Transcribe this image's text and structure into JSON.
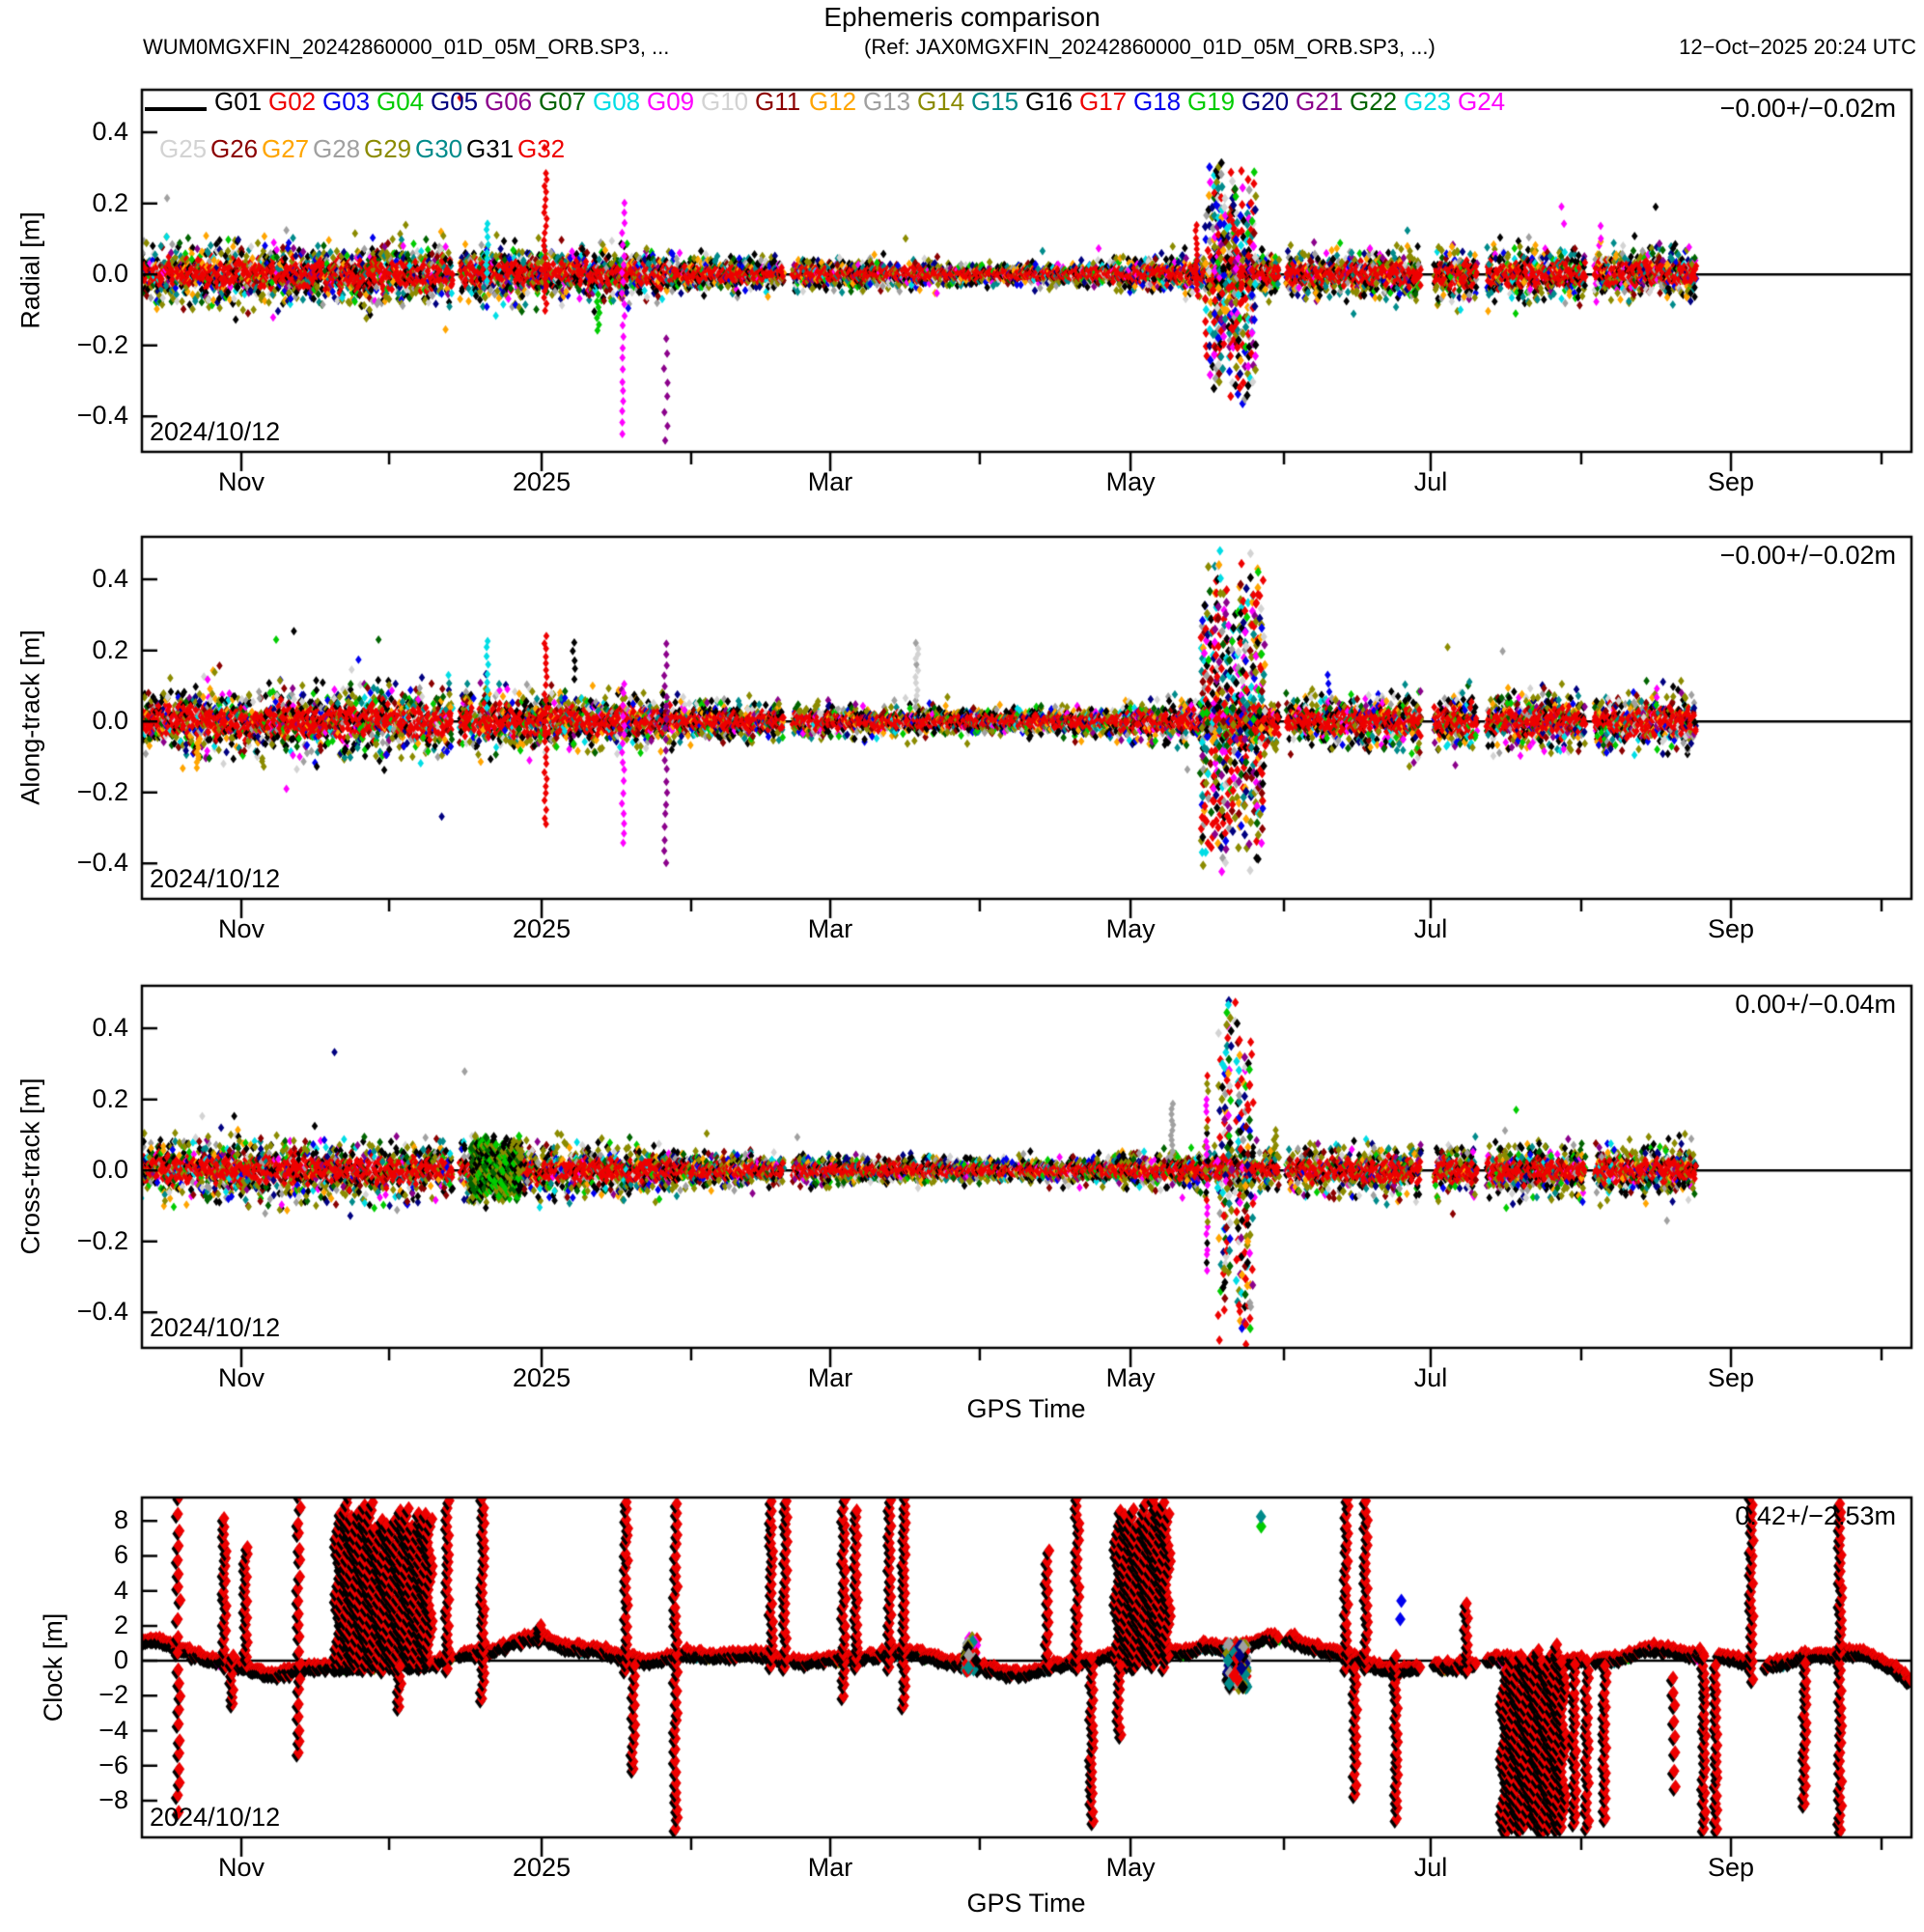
{
  "title": "Ephemeris comparison",
  "header": {
    "left_file": "WUM0MGXFIN_20242860000_01D_05M_ORB.SP3, ...",
    "ref_file": "(Ref: JAX0MGXFIN_20242860000_01D_05M_ORB.SP3, ...)",
    "timestamp": "12−Oct−2025 20:24 UTC"
  },
  "colors": {
    "black": "#000000",
    "red": "#ee0000",
    "blue": "#0000ee",
    "green": "#00cc00",
    "navy": "#000080",
    "purple": "#8b008b",
    "darkgreen": "#006400",
    "cyan": "#00dde5",
    "magenta": "#ff00ff",
    "lightgray": "#d3d3d3",
    "darkred": "#8b0000",
    "orange": "#ffa500",
    "gray": "#a0a0a0",
    "olive": "#8b8b00",
    "teal": "#008b8b"
  },
  "legend": {
    "sat_ids": [
      "G01",
      "G02",
      "G03",
      "G04",
      "G05",
      "G06",
      "G07",
      "G08",
      "G09",
      "G10",
      "G11",
      "G12",
      "G13",
      "G14",
      "G15",
      "G16",
      "G17",
      "G18",
      "G19",
      "G20",
      "G21",
      "G22",
      "G23",
      "G24",
      "G25",
      "G26",
      "G27",
      "G28",
      "G29",
      "G30",
      "G31",
      "G32"
    ],
    "palette15": [
      "black",
      "red",
      "blue",
      "green",
      "navy",
      "purple",
      "darkgreen",
      "cyan",
      "magenta",
      "lightgray",
      "darkred",
      "orange",
      "gray",
      "olive",
      "teal"
    ]
  },
  "axes": {
    "xlabel": "GPS Time",
    "x_major_ticks": [
      {
        "label": "Nov",
        "t": 0.0562
      },
      {
        "label": "2025",
        "t": 0.2259
      },
      {
        "label": "Mar",
        "t": 0.389
      },
      {
        "label": "May",
        "t": 0.5587
      },
      {
        "label": "Jul",
        "t": 0.7283
      },
      {
        "label": "Sep",
        "t": 0.898
      }
    ],
    "x_minor_ticks": [
      0.1397,
      0.3104,
      0.4735,
      0.6454,
      0.8134,
      0.9831
    ]
  },
  "burst_weights": {
    "red": 5,
    "black": 2,
    "olive": 2,
    "teal": 1.5,
    "cyan": 1.2,
    "magenta": 1.2,
    "orange": 1.2,
    "green": 1,
    "blue": 1,
    "navy": 1,
    "purple": 1,
    "darkred": 1,
    "gray": 1,
    "lightgray": 1,
    "darkgreen": 0.8
  },
  "chart_data": [
    {
      "type": "scatter",
      "name": "radial",
      "ylabel": "Radial [m]",
      "stat": "−0.00+/−0.02m",
      "date_label": "2024/10/12",
      "ylim": [
        -0.5,
        0.52
      ],
      "yticks": [
        {
          "label": "0.4",
          "v": 0.4
        },
        {
          "label": "0.2",
          "v": 0.2
        },
        {
          "label": "0.0",
          "v": 0.0
        },
        {
          "label": "−0.2",
          "v": -0.2
        },
        {
          "label": "−0.4",
          "v": -0.4
        }
      ],
      "band": {
        "end": 0.878,
        "sigma": 0.05,
        "core": 0.022,
        "fringe": {
          "olive": 3,
          "black": 3,
          "teal": 1.5,
          "darkred": 1,
          "gray": 1,
          "lightgray": 1,
          "orange": 1.2,
          "green": 0.8,
          "blue": 0.8,
          "navy": 0.8,
          "purple": 0.6,
          "magenta": 0.6,
          "cyan": 0.6,
          "darkgreen": 0.8
        }
      },
      "events": [
        {
          "kind": "dots",
          "t": 0.179,
          "y0": 0.49,
          "y1": 0.51,
          "n": 1,
          "colors": [
            "red"
          ]
        },
        {
          "kind": "column",
          "t": 0.195,
          "y0": -0.02,
          "y1": 0.16,
          "dy": 0.02,
          "colors": [
            "cyan"
          ]
        },
        {
          "kind": "column",
          "t": 0.228,
          "y0": -0.1,
          "y1": 0.3,
          "dy": 0.018,
          "colors": [
            "red"
          ]
        },
        {
          "kind": "dots",
          "t": 0.2285,
          "y0": 0.35,
          "y1": 0.37,
          "n": 1,
          "colors": [
            "red"
          ]
        },
        {
          "kind": "dots",
          "t": 0.258,
          "y0": -0.16,
          "y1": -0.06,
          "n": 7,
          "colors": [
            "green"
          ]
        },
        {
          "kind": "column",
          "t": 0.272,
          "y0": -0.45,
          "y1": 0.22,
          "dy": 0.03,
          "colors": [
            "magenta"
          ]
        },
        {
          "kind": "dots",
          "t": 0.296,
          "y0": -0.47,
          "y1": -0.18,
          "n": 8,
          "colors": [
            "purple"
          ]
        },
        {
          "kind": "column",
          "t": 0.596,
          "y0": -0.06,
          "y1": 0.14,
          "dy": 0.015,
          "colors": [
            "red"
          ]
        },
        {
          "kind": "burst",
          "t0": 0.602,
          "t1": 0.629,
          "y0": -0.37,
          "y1": 0.34
        },
        {
          "kind": "dots",
          "t": 0.803,
          "y0": 0.14,
          "y1": 0.19,
          "n": 2,
          "colors": [
            "magenta"
          ]
        },
        {
          "kind": "dots",
          "t": 0.825,
          "y0": 0.1,
          "y1": 0.14,
          "n": 2,
          "colors": [
            "magenta"
          ]
        }
      ]
    },
    {
      "type": "scatter",
      "name": "along-track",
      "ylabel": "Along-track [m]",
      "stat": "−0.00+/−0.02m",
      "date_label": "2024/10/12",
      "ylim": [
        -0.5,
        0.52
      ],
      "yticks": [
        {
          "label": "0.4",
          "v": 0.4
        },
        {
          "label": "0.2",
          "v": 0.2
        },
        {
          "label": "0.0",
          "v": 0.0
        },
        {
          "label": "−0.2",
          "v": -0.2
        },
        {
          "label": "−0.4",
          "v": -0.4
        }
      ],
      "band": {
        "end": 0.878,
        "sigma": 0.055,
        "core": 0.024,
        "fringe": {
          "olive": 3,
          "black": 3,
          "teal": 1.2,
          "darkred": 1,
          "gray": 1,
          "lightgray": 1,
          "orange": 1.2,
          "green": 0.8,
          "blue": 0.8,
          "navy": 0.8,
          "purple": 0.6,
          "magenta": 0.6,
          "cyan": 0.6,
          "darkgreen": 0.8
        }
      },
      "events": [
        {
          "kind": "dots",
          "t": 0.032,
          "y0": -0.13,
          "y1": -0.05,
          "n": 8,
          "colors": [
            "orange"
          ]
        },
        {
          "kind": "column",
          "t": 0.195,
          "y0": 0.04,
          "y1": 0.23,
          "dy": 0.022,
          "colors": [
            "cyan"
          ]
        },
        {
          "kind": "column",
          "t": 0.228,
          "y0": -0.29,
          "y1": 0.25,
          "dy": 0.02,
          "colors": [
            "red"
          ]
        },
        {
          "kind": "dots",
          "t": 0.244,
          "y0": 0.12,
          "y1": 0.22,
          "n": 5,
          "colors": [
            "black"
          ]
        },
        {
          "kind": "column",
          "t": 0.272,
          "y0": -0.34,
          "y1": 0.12,
          "dy": 0.028,
          "colors": [
            "magenta"
          ]
        },
        {
          "kind": "column",
          "t": 0.296,
          "y0": -0.4,
          "y1": 0.24,
          "dy": 0.03,
          "colors": [
            "purple"
          ]
        },
        {
          "kind": "column",
          "t": 0.438,
          "y0": 0.04,
          "y1": 0.23,
          "dy": 0.016,
          "colors": [
            "gray",
            "lightgray"
          ]
        },
        {
          "kind": "burst",
          "t0": 0.599,
          "t1": 0.634,
          "y0": -0.43,
          "y1": 0.5
        },
        {
          "kind": "dots",
          "t": 0.67,
          "y0": 0.08,
          "y1": 0.13,
          "n": 3,
          "colors": [
            "blue"
          ]
        }
      ]
    },
    {
      "type": "scatter",
      "name": "cross-track",
      "ylabel": "Cross-track [m]",
      "stat": "0.00+/−0.04m",
      "date_label": "2024/10/12",
      "ylim": [
        -0.5,
        0.52
      ],
      "yticks": [
        {
          "label": "0.4",
          "v": 0.4
        },
        {
          "label": "0.2",
          "v": 0.2
        },
        {
          "label": "0.0",
          "v": 0.0
        },
        {
          "label": "−0.2",
          "v": -0.2
        },
        {
          "label": "−0.4",
          "v": -0.4
        }
      ],
      "band": {
        "end": 0.878,
        "sigma": 0.05,
        "core": 0.02,
        "fringe": {
          "olive": 4,
          "black": 3,
          "teal": 1.2,
          "darkred": 1,
          "gray": 1,
          "lightgray": 1,
          "orange": 1,
          "green": 0.8,
          "blue": 0.7,
          "navy": 0.7,
          "purple": 0.5,
          "magenta": 0.6,
          "cyan": 0.5,
          "darkgreen": 0.9
        }
      },
      "events": [
        {
          "kind": "burst",
          "t0": 0.187,
          "t1": 0.217,
          "y0": -0.09,
          "y1": 0.1,
          "colors": [
            "olive",
            "black",
            "green",
            "darkgreen"
          ]
        },
        {
          "kind": "column",
          "t": 0.582,
          "y0": 0.04,
          "y1": 0.19,
          "dy": 0.016,
          "colors": [
            "gray"
          ]
        },
        {
          "kind": "column",
          "t": 0.602,
          "y0": -0.28,
          "y1": 0.27,
          "dy": 0.02,
          "colors": [
            "red",
            "olive",
            "black",
            "magenta"
          ]
        },
        {
          "kind": "burst",
          "t0": 0.609,
          "t1": 0.627,
          "y0": -0.52,
          "y1": 0.52
        },
        {
          "kind": "dots",
          "t": 0.64,
          "y0": 0.06,
          "y1": 0.11,
          "n": 5,
          "colors": [
            "olive"
          ]
        }
      ]
    },
    {
      "type": "scatter",
      "name": "clock",
      "ylabel": "Clock [m]",
      "stat": "0.42+/−2.53m",
      "date_label": "2024/10/12",
      "ylim": [
        -10.1,
        9.34
      ],
      "yticks": [
        {
          "label": "8",
          "v": 8
        },
        {
          "label": "6",
          "v": 6
        },
        {
          "label": "4",
          "v": 4
        },
        {
          "label": "2",
          "v": 2
        },
        {
          "label": "0",
          "v": 0
        },
        {
          "label": "−2",
          "v": -2
        },
        {
          "label": "−4",
          "v": -4
        },
        {
          "label": "−6",
          "v": -6
        },
        {
          "label": "−8",
          "v": -8
        }
      ],
      "band": {
        "end": 1.0,
        "noise": 0.18,
        "clock": true
      },
      "events": [
        {
          "kind": "column",
          "t": 0.021,
          "y0": -8.7,
          "y1": 9.5,
          "dy": 0.9
        },
        {
          "kind": "column",
          "t": 0.047,
          "y0": -0.3,
          "y1": 8.3,
          "dy": 0.45
        },
        {
          "kind": "column",
          "t": 0.051,
          "y0": -2.5,
          "y1": 0.3,
          "dy": 0.45
        },
        {
          "kind": "column",
          "t": 0.059,
          "y0": -0.3,
          "y1": 6.7,
          "dy": 0.45
        },
        {
          "kind": "column",
          "t": 0.089,
          "y0": -5.3,
          "y1": 9.5,
          "dy": 0.75
        },
        {
          "kind": "block",
          "t0": 0.111,
          "t1": 0.165,
          "y0": -0.5,
          "y1": 9.6,
          "vary": 1.8
        },
        {
          "kind": "column",
          "t": 0.146,
          "y0": -2.6,
          "y1": 0.0,
          "dy": 0.45
        },
        {
          "kind": "column",
          "t": 0.173,
          "y0": -0.4,
          "y1": 9.5,
          "dy": 0.5
        },
        {
          "kind": "column",
          "t": 0.193,
          "y0": -2.2,
          "y1": 9.4,
          "dy": 0.5
        },
        {
          "kind": "dots",
          "t": 0.225,
          "y0": 1.2,
          "y1": 2.0,
          "n": 4
        },
        {
          "kind": "column",
          "t": 0.274,
          "y0": -0.5,
          "y1": 9.5,
          "dy": 0.5
        },
        {
          "kind": "column",
          "t": 0.278,
          "y0": -6.2,
          "y1": 0.2,
          "dy": 0.5
        },
        {
          "kind": "column",
          "t": 0.302,
          "y0": -9.6,
          "y1": 9.5,
          "dy": 0.55
        },
        {
          "kind": "column",
          "t": 0.356,
          "y0": -0.3,
          "y1": 9.5,
          "dy": 0.5
        },
        {
          "kind": "column",
          "t": 0.364,
          "y0": -0.3,
          "y1": 9.5,
          "dy": 0.5
        },
        {
          "kind": "column",
          "t": 0.397,
          "y0": -2.0,
          "y1": 9.5,
          "dy": 0.5
        },
        {
          "kind": "column",
          "t": 0.404,
          "y0": -0.3,
          "y1": 9.0,
          "dy": 0.5
        },
        {
          "kind": "column",
          "t": 0.423,
          "y0": -0.4,
          "y1": 9.3,
          "dy": 0.5
        },
        {
          "kind": "column",
          "t": 0.431,
          "y0": -2.6,
          "y1": 9.5,
          "dy": 0.5
        },
        {
          "kind": "cluster",
          "t0": 0.465,
          "t1": 0.472,
          "y0": -0.6,
          "y1": 1.3,
          "n": 60
        },
        {
          "kind": "column",
          "t": 0.512,
          "y0": -0.2,
          "y1": 6.6,
          "dy": 0.6
        },
        {
          "kind": "column",
          "t": 0.529,
          "y0": -0.3,
          "y1": 9.5,
          "dy": 0.5
        },
        {
          "kind": "column",
          "t": 0.537,
          "y0": -9.2,
          "y1": 0.5,
          "dy": 0.5
        },
        {
          "kind": "block",
          "t0": 0.5515,
          "t1": 0.5826,
          "y0": -0.4,
          "y1": 9.6,
          "vary": 1.6
        },
        {
          "kind": "column",
          "t": 0.5526,
          "y0": -4.2,
          "y1": 0.0,
          "dy": 0.5
        },
        {
          "kind": "cluster",
          "t0": 0.6127,
          "t1": 0.6247,
          "y0": -1.6,
          "y1": 1.0,
          "n": 110,
          "colors": [
            "black",
            "red",
            "navy",
            "olive",
            "teal",
            "gray"
          ]
        },
        {
          "kind": "dots",
          "t": 0.632,
          "y0": 7.6,
          "y1": 8.2,
          "n": 2,
          "colors": [
            "teal",
            "green"
          ]
        },
        {
          "kind": "column",
          "t": 0.681,
          "y0": -0.4,
          "y1": 9.5,
          "dy": 0.5
        },
        {
          "kind": "column",
          "t": 0.686,
          "y0": -7.6,
          "y1": 0.0,
          "dy": 0.5
        },
        {
          "kind": "column",
          "t": 0.692,
          "y0": -0.3,
          "y1": 9.3,
          "dy": 0.5
        },
        {
          "kind": "column",
          "t": 0.709,
          "y0": -9.0,
          "y1": 0.3,
          "dy": 0.5
        },
        {
          "kind": "dots",
          "t": 0.712,
          "y0": 2.3,
          "y1": 3.5,
          "n": 2,
          "colors": [
            "blue"
          ]
        },
        {
          "kind": "column",
          "t": 0.749,
          "y0": -0.5,
          "y1": 3.6,
          "dy": 0.5
        },
        {
          "kind": "block",
          "t0": 0.7698,
          "t1": 0.8047,
          "y0": -9.8,
          "y1": 1.0,
          "vary": 1.4
        },
        {
          "kind": "column",
          "t": 0.81,
          "y0": -9.3,
          "y1": 0.0,
          "dy": 0.5
        },
        {
          "kind": "column",
          "t": 0.817,
          "y0": -9.5,
          "y1": 0.4,
          "dy": 0.5
        },
        {
          "kind": "column",
          "t": 0.827,
          "y0": -9.0,
          "y1": 0.0,
          "dy": 0.5
        },
        {
          "kind": "column",
          "t": 0.866,
          "y0": -7.2,
          "y1": -0.8,
          "dy": 0.9
        },
        {
          "kind": "column",
          "t": 0.883,
          "y0": -9.6,
          "y1": 0.3,
          "dy": 0.5
        },
        {
          "kind": "column",
          "t": 0.89,
          "y0": -9.6,
          "y1": 0.2,
          "dy": 0.5
        },
        {
          "kind": "column",
          "t": 0.91,
          "y0": -1.0,
          "y1": 9.5,
          "dy": 0.5
        },
        {
          "kind": "column",
          "t": 0.94,
          "y0": -8.2,
          "y1": 0.3,
          "dy": 0.5
        },
        {
          "kind": "column",
          "t": 0.96,
          "y0": -9.7,
          "y1": 9.5,
          "dy": 0.5
        }
      ]
    }
  ]
}
